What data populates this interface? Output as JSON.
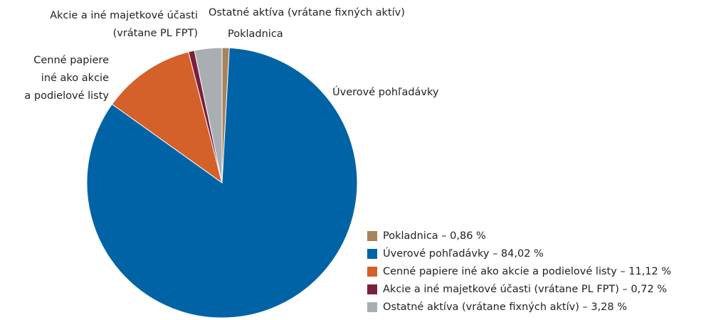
{
  "chart_data": {
    "type": "pie",
    "categories": [
      "Pokladnica",
      "Úverové pohľadávky",
      "Cenné papiere iné ako akcie a podielové listy",
      "Akcie a iné majetkové účasti (vrátane PL FPT)",
      "Ostatné aktíva (vrátane fixných aktív)"
    ],
    "values": [
      0.86,
      84.02,
      11.12,
      0.72,
      3.28
    ],
    "value_labels": [
      "Pokladnica – 0,86 %",
      "Úverové pohľadávky – 84,02 %",
      "Cenné papiere iné ako akcie a podielové listy – 11,12 %",
      "Akcie a iné majetkové účasti (vrátane PL FPT) – 0,72 %",
      "Ostatné aktíva (vrátane fixných aktív) – 3,28 %"
    ],
    "slice_labels": [
      [
        "Pokladnica"
      ],
      [
        "Úverové pohľadávky"
      ],
      [
        "Cenné papiere",
        "iné ako akcie",
        "a podielové listy"
      ],
      [
        "Akcie a iné majetkové účasti",
        "(vrátane PL FPT)"
      ],
      [
        "Ostatné aktíva (vrátane fixných aktív)"
      ]
    ],
    "colors": [
      "#a8845a",
      "#0063a6",
      "#d4602a",
      "#7a1f3d",
      "#a9aeb2"
    ],
    "legend": "bottom-right"
  }
}
